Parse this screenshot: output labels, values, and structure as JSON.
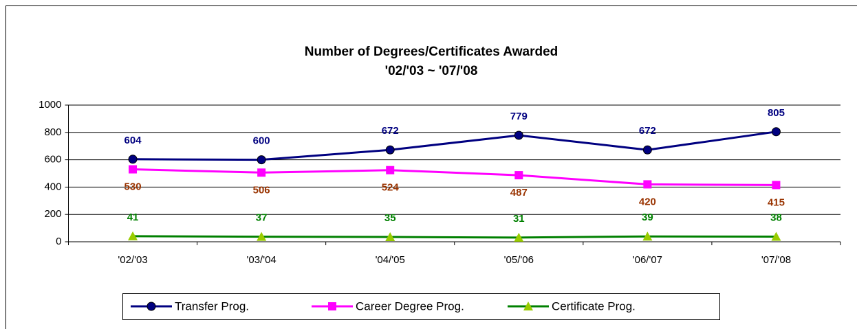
{
  "chart_data": {
    "type": "line",
    "title": "Number of Degrees/Certificates Awarded",
    "subtitle": "'02/'03 ~ '07/'08",
    "categories": [
      "'02/'03",
      "'03/'04",
      "'04/'05",
      "'05/'06",
      "'06/'07",
      "'07/'08"
    ],
    "series": [
      {
        "name": "Transfer Prog.",
        "color": "#000080",
        "marker": "circle",
        "marker_color": "#000080",
        "label_color": "#000080",
        "label_position": "above",
        "values": [
          604,
          600,
          672,
          779,
          672,
          805
        ]
      },
      {
        "name": "Career Degree Prog.",
        "color": "#ff00ff",
        "marker": "square",
        "marker_color": "#ff00ff",
        "label_color": "#993300",
        "label_position": "below",
        "values": [
          530,
          506,
          524,
          487,
          420,
          415
        ]
      },
      {
        "name": "Certificate Prog.",
        "color": "#008000",
        "marker": "triangle",
        "marker_color": "#99cc00",
        "label_color": "#008000",
        "label_position": "above",
        "values": [
          41,
          37,
          35,
          31,
          39,
          38
        ]
      }
    ],
    "ylim": [
      0,
      1000
    ],
    "yticks": [
      0,
      200,
      400,
      600,
      800,
      1000
    ],
    "grid": true,
    "legend": "bottom"
  }
}
